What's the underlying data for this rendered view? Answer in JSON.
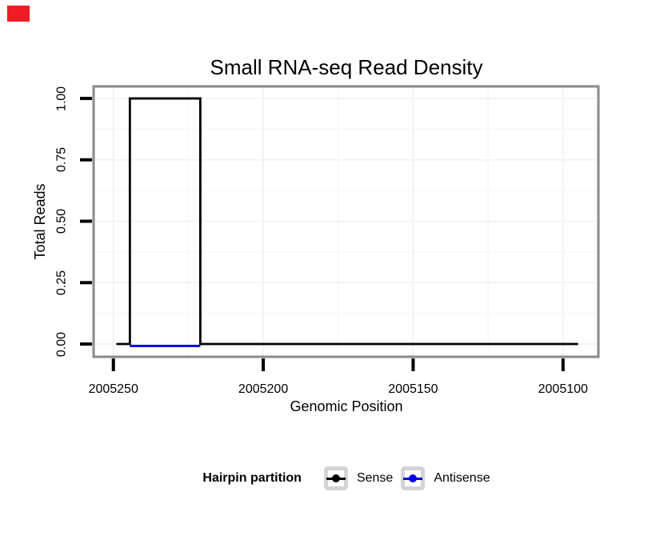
{
  "decorations": {
    "corner_marker_color": "#ee1c25"
  },
  "colors": {
    "panel_border": "#8a8a8a",
    "grid_major": "#efefef",
    "grid_minor": "#f6f6f6",
    "axis_tick": "#000000",
    "sense": "#000000",
    "antisense": "#0000ee"
  },
  "chart_data": {
    "type": "line",
    "title": "Small RNA-seq Read Density",
    "xlabel": "Genomic Position",
    "ylabel": "Total Reads",
    "x_axis": {
      "reversed": true,
      "domain_left": 2005256.6,
      "domain_right": 2005088.2,
      "ticks": [
        {
          "value": 2005250,
          "label": "2005250"
        },
        {
          "value": 2005200,
          "label": "2005200"
        },
        {
          "value": 2005150,
          "label": "2005150"
        },
        {
          "value": 2005100,
          "label": "2005100"
        }
      ],
      "minor_ticks": [
        2005225,
        2005175,
        2005125
      ]
    },
    "y_axis": {
      "domain_bottom": -0.052,
      "domain_top": 1.049,
      "ticks": [
        {
          "value": 0.0,
          "label": "0.00"
        },
        {
          "value": 0.25,
          "label": "0.25"
        },
        {
          "value": 0.5,
          "label": "0.50"
        },
        {
          "value": 0.75,
          "label": "0.75"
        },
        {
          "value": 1.0,
          "label": "1.00"
        }
      ],
      "minor_ticks": [
        0.125,
        0.375,
        0.625,
        0.875
      ]
    },
    "grid": {
      "major": true,
      "minor": true
    },
    "series": [
      {
        "name": "Sense",
        "color": "#000000",
        "points": [
          [
            2005249,
            0
          ],
          [
            2005244.5,
            0
          ],
          [
            2005244.5,
            1
          ],
          [
            2005221,
            1
          ],
          [
            2005221,
            0
          ],
          [
            2005095,
            0
          ]
        ]
      },
      {
        "name": "Antisense",
        "color": "#0000ee",
        "points": [
          [
            2005244.5,
            0
          ],
          [
            2005221,
            0
          ]
        ]
      }
    ],
    "legend": {
      "title": "Hairpin partition",
      "position": "bottom",
      "entries": [
        {
          "label": "Sense",
          "color": "#000000"
        },
        {
          "label": "Antisense",
          "color": "#0000ee"
        }
      ]
    }
  }
}
